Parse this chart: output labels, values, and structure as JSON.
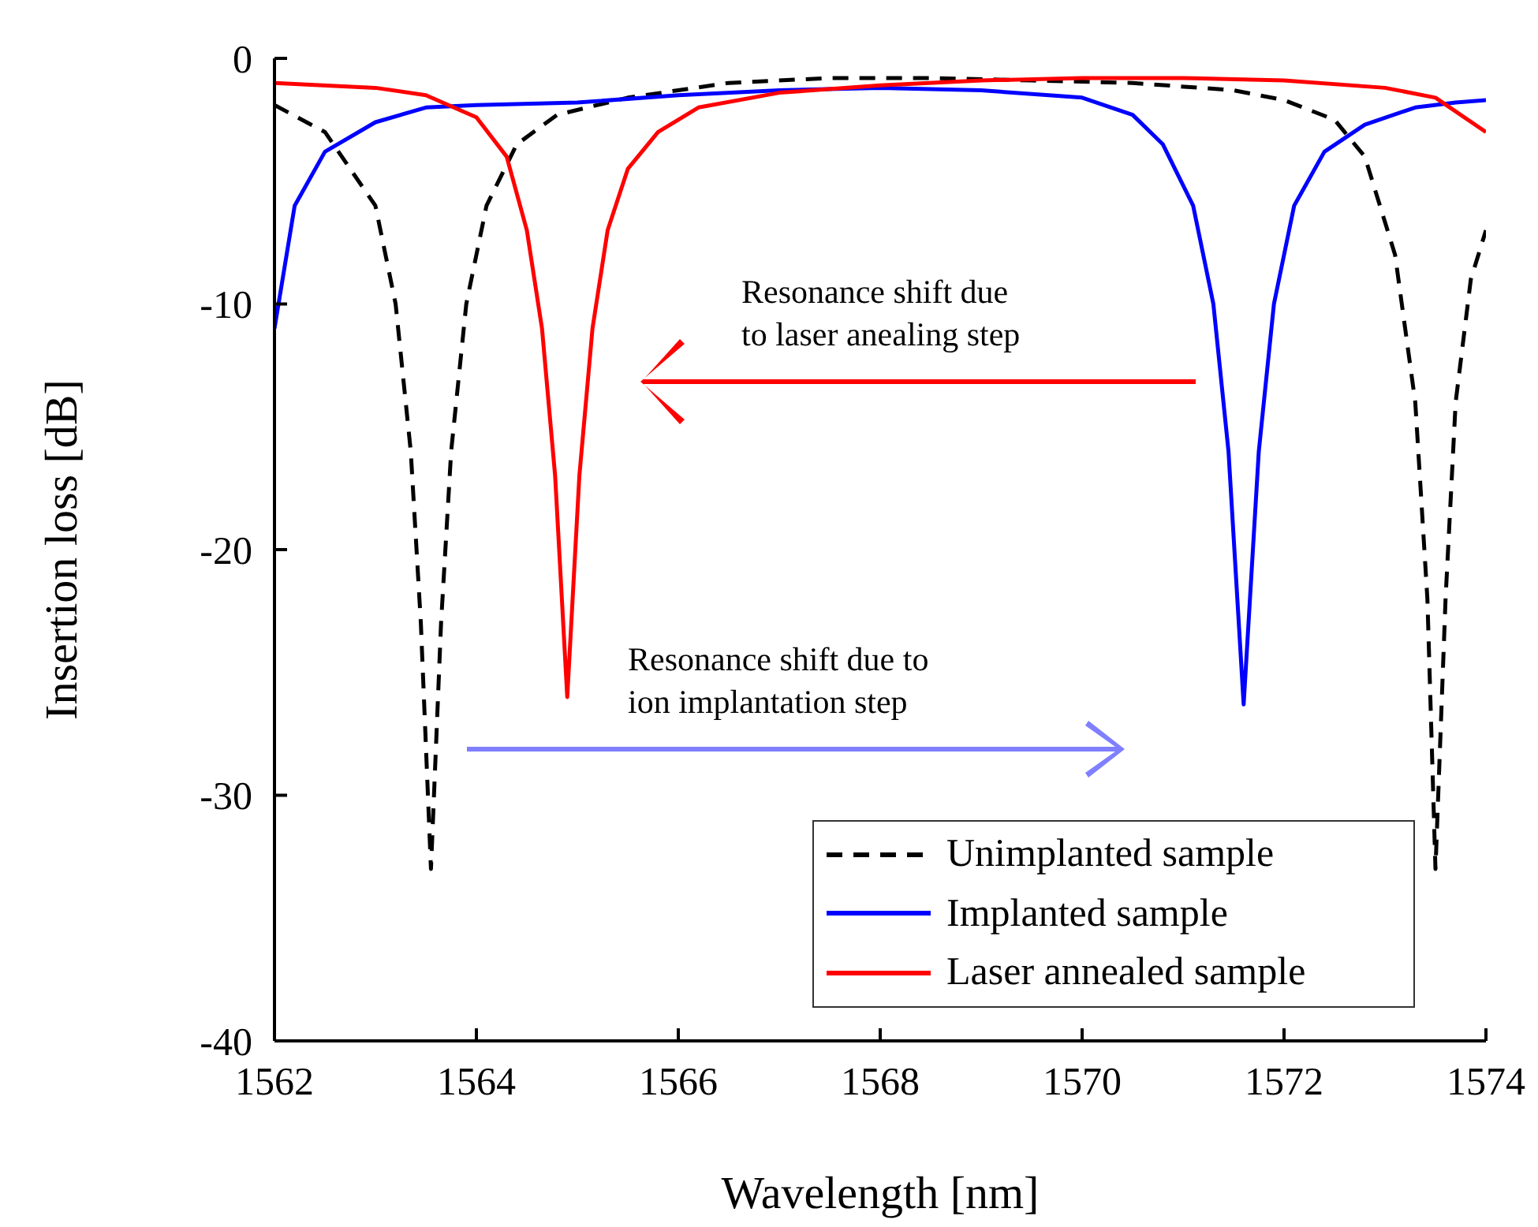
{
  "chart_data": {
    "type": "line",
    "xlabel": "Wavelength [nm]",
    "ylabel": "Insertion loss [dB]",
    "xlim": [
      1562,
      1574
    ],
    "xticks": [
      1562,
      1564,
      1566,
      1568,
      1570,
      1572,
      1574
    ],
    "ylim": [
      -40,
      0
    ],
    "yticks": [
      -40,
      -30,
      -20,
      -10,
      0
    ],
    "grid": false,
    "legend": "bottom right",
    "marker": "none",
    "annotations": [
      "Resonance shift due\nto laser anealing step",
      "Resonance shift due to\nion implantation step"
    ],
    "series": [
      {
        "name": "Unimplanted sample",
        "color": "#000000",
        "line_style": "dashed",
        "x": [
          1562,
          1562.5,
          1563,
          1563.2,
          1563.35,
          1563.45,
          1563.55,
          1563.65,
          1563.75,
          1563.9,
          1564.1,
          1564.4,
          1564.8,
          1565.5,
          1566.5,
          1567.5,
          1568.5,
          1569.5,
          1570.5,
          1571.5,
          1572,
          1572.5,
          1572.8,
          1573.1,
          1573.3,
          1573.42,
          1573.5,
          1573.6,
          1573.7,
          1573.85,
          1574
        ],
        "values": [
          -1.9,
          -3,
          -6,
          -10,
          -16,
          -23,
          -33,
          -23,
          -16,
          -10,
          -6,
          -3.5,
          -2.3,
          -1.6,
          -1,
          -0.8,
          -0.8,
          -0.9,
          -1,
          -1.3,
          -1.7,
          -2.5,
          -4,
          -8,
          -14,
          -22,
          -33,
          -22,
          -14,
          -9,
          -7
        ]
      },
      {
        "name": "Implanted sample",
        "color": "#0000ff",
        "line_style": "solid",
        "x": [
          1562,
          1562.2,
          1562.5,
          1563,
          1563.5,
          1564,
          1565,
          1566,
          1567,
          1568,
          1569,
          1570,
          1570.5,
          1570.8,
          1571.1,
          1571.3,
          1571.45,
          1571.6,
          1571.75,
          1571.9,
          1572.1,
          1572.4,
          1572.8,
          1573.3,
          1573.7,
          1574
        ],
        "values": [
          -11,
          -6,
          -3.8,
          -2.6,
          -2,
          -1.9,
          -1.8,
          -1.5,
          -1.3,
          -1.2,
          -1.3,
          -1.6,
          -2.3,
          -3.5,
          -6,
          -10,
          -16,
          -26.3,
          -16,
          -10,
          -6,
          -3.8,
          -2.7,
          -2,
          -1.8,
          -1.7
        ]
      },
      {
        "name": "Laser annealed sample",
        "color": "#ff0000",
        "line_style": "solid",
        "x": [
          1562,
          1563,
          1563.5,
          1564,
          1564.3,
          1564.5,
          1564.65,
          1564.78,
          1564.9,
          1565.02,
          1565.15,
          1565.3,
          1565.5,
          1565.8,
          1566.2,
          1567,
          1568,
          1569,
          1570,
          1571,
          1572,
          1573,
          1573.5,
          1574
        ],
        "values": [
          -1,
          -1.2,
          -1.5,
          -2.4,
          -4,
          -7,
          -11,
          -17,
          -26,
          -17,
          -11,
          -7,
          -4.5,
          -3,
          -2,
          -1.4,
          -1.1,
          -0.9,
          -0.8,
          -0.8,
          -0.9,
          -1.2,
          -1.6,
          -3
        ]
      }
    ]
  }
}
